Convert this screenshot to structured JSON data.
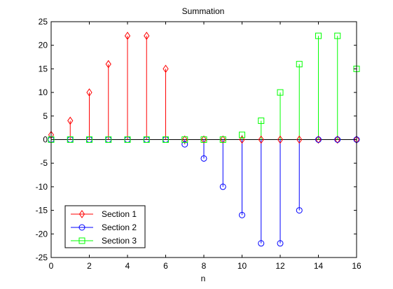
{
  "chart_data": {
    "type": "stem",
    "title": "Summation",
    "xlabel": "n",
    "ylabel": "",
    "xlim": [
      0,
      16
    ],
    "ylim": [
      -25,
      25
    ],
    "xticks": [
      0,
      2,
      4,
      6,
      8,
      10,
      12,
      14,
      16
    ],
    "yticks": [
      25,
      20,
      15,
      10,
      5,
      0,
      -5,
      -10,
      -15,
      -20,
      -25
    ],
    "grid": false,
    "legend_position": "bottom-left",
    "series": [
      {
        "name": "Section 1",
        "color": "#ff0000",
        "marker": "diamond",
        "x": [
          0,
          1,
          2,
          3,
          4,
          5,
          6,
          7,
          8,
          9,
          10,
          11,
          12,
          13,
          14,
          15,
          16
        ],
        "values": [
          1,
          4,
          10,
          16,
          22,
          22,
          15,
          0,
          0,
          0,
          0,
          0,
          0,
          0,
          0,
          0,
          0
        ]
      },
      {
        "name": "Section 2",
        "color": "#0000ff",
        "marker": "circle",
        "x": [
          0,
          1,
          2,
          3,
          4,
          5,
          6,
          7,
          8,
          9,
          10,
          11,
          12,
          13,
          14,
          15,
          16
        ],
        "values": [
          0,
          0,
          0,
          0,
          0,
          0,
          0,
          -1,
          -4,
          -10,
          -16,
          -22,
          -22,
          -15,
          0,
          0,
          0
        ]
      },
      {
        "name": "Section 3",
        "color": "#00ff00",
        "marker": "square",
        "x": [
          0,
          1,
          2,
          3,
          4,
          5,
          6,
          7,
          8,
          9,
          10,
          11,
          12,
          13,
          14,
          15,
          16
        ],
        "values": [
          0,
          0,
          0,
          0,
          0,
          0,
          0,
          0,
          0,
          0,
          1,
          4,
          10,
          16,
          22,
          22,
          15
        ]
      }
    ]
  }
}
